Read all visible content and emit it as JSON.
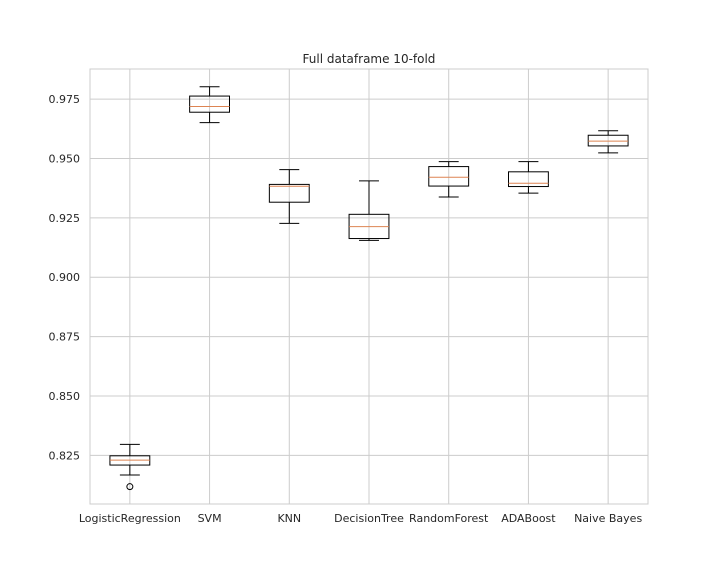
{
  "chart_data": {
    "type": "boxplot",
    "title": "Full dataframe 10-fold",
    "xlabel": "",
    "ylabel": "",
    "ylim": [
      0.8045,
      0.9877
    ],
    "grid": true,
    "yticks": [
      0.825,
      0.85,
      0.875,
      0.9,
      0.925,
      0.95,
      0.975
    ],
    "ytick_labels": [
      "0.825",
      "0.850",
      "0.875",
      "0.900",
      "0.925",
      "0.950",
      "0.975"
    ],
    "categories": [
      "LogisticRegression",
      "SVM",
      "KNN",
      "DecisionTree",
      "RandomForest",
      "ADABoost",
      "Naive Bayes"
    ],
    "boxes": [
      {
        "whisker_low": 0.8167,
        "q1": 0.8209,
        "median": 0.823,
        "q3": 0.8248,
        "whisker_high": 0.8296,
        "outliers": [
          0.8118
        ]
      },
      {
        "whisker_low": 0.9651,
        "q1": 0.9695,
        "median": 0.9719,
        "q3": 0.9763,
        "whisker_high": 0.9802,
        "outliers": []
      },
      {
        "whisker_low": 0.9227,
        "q1": 0.9316,
        "median": 0.9383,
        "q3": 0.9391,
        "whisker_high": 0.9453,
        "outliers": []
      },
      {
        "whisker_low": 0.9155,
        "q1": 0.9163,
        "median": 0.9213,
        "q3": 0.9265,
        "whisker_high": 0.9406,
        "outliers": []
      },
      {
        "whisker_low": 0.9338,
        "q1": 0.9384,
        "median": 0.9421,
        "q3": 0.9466,
        "whisker_high": 0.9487,
        "outliers": []
      },
      {
        "whisker_low": 0.9354,
        "q1": 0.9382,
        "median": 0.9396,
        "q3": 0.9444,
        "whisker_high": 0.9487,
        "outliers": []
      },
      {
        "whisker_low": 0.9524,
        "q1": 0.9553,
        "median": 0.9573,
        "q3": 0.9598,
        "whisker_high": 0.9617,
        "outliers": []
      }
    ],
    "colors": {
      "box": "#000000",
      "median": "#dd8452",
      "grid": "#cccccc",
      "spine": "#cccccc",
      "text": "#262626",
      "background": "#ffffff"
    }
  }
}
